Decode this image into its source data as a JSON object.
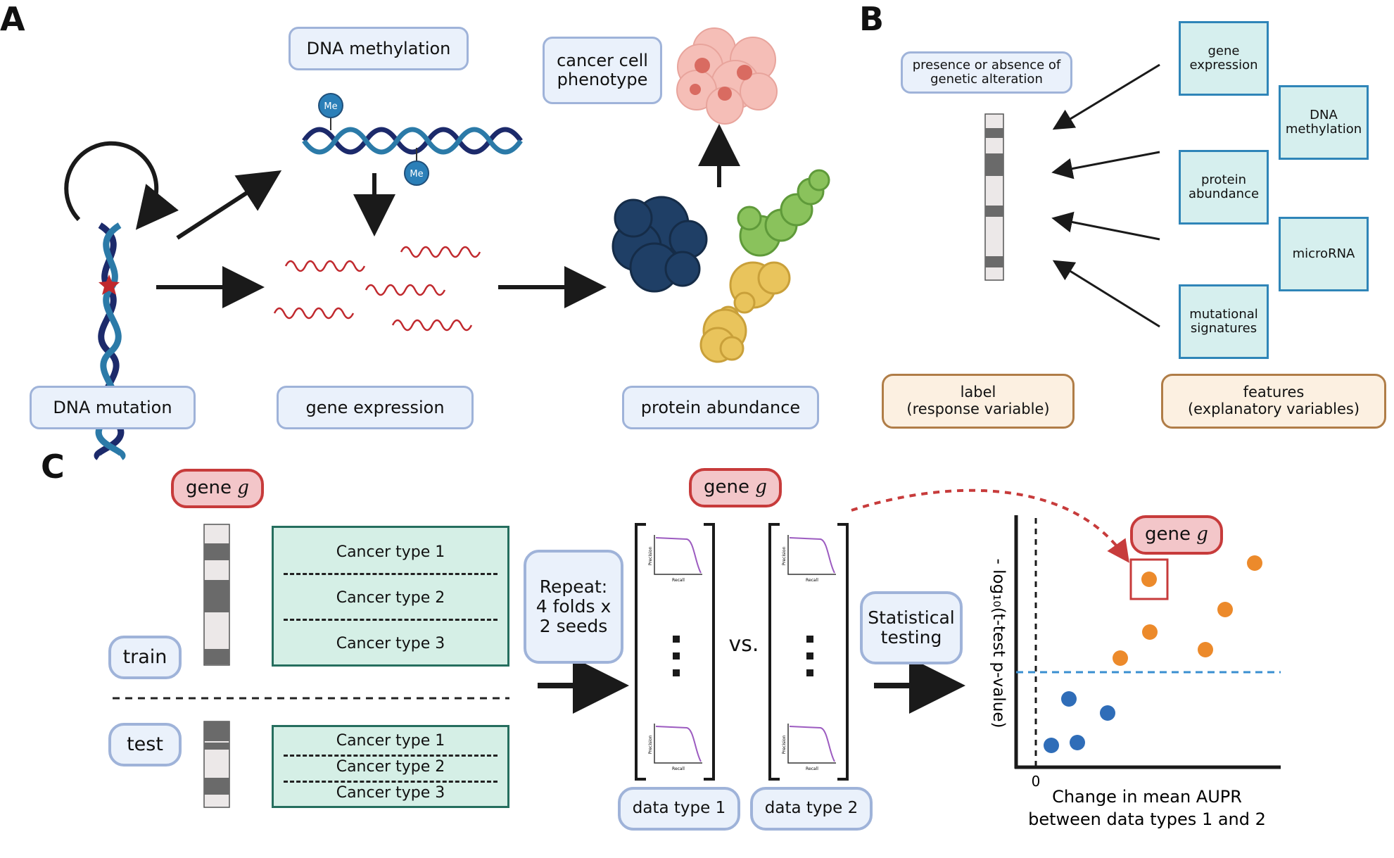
{
  "panels": {
    "a": "A",
    "b": "B",
    "c": "C"
  },
  "panel_a": {
    "dna_methylation": "DNA methylation",
    "me_label": "Me",
    "cancer_cell_phenotype": "cancer cell\nphenotype",
    "dna_mutation": "DNA mutation",
    "gene_expression": "gene expression",
    "protein_abundance": "protein abundance"
  },
  "panel_b": {
    "label_title": "presence or absence of\ngenetic alteration",
    "features": {
      "gene_expression": "gene\nexpression",
      "dna_methylation": "DNA\nmethylation",
      "protein_abundance": "protein\nabundance",
      "microrna": "microRNA",
      "mutational_signatures": "mutational\nsignatures"
    },
    "label_box": "label\n(response variable)",
    "features_box": "features\n(explanatory variables)"
  },
  "panel_c": {
    "gene_word": "gene ",
    "gene_symbol": "g",
    "train": "train",
    "test": "test",
    "cancer_types": [
      "Cancer type 1",
      "Cancer type 2",
      "Cancer type 3"
    ],
    "repeat": "Repeat:\n4 folds x\n2 seeds",
    "vs": "vs.",
    "statistical_testing": "Statistical\ntesting",
    "data_type_1": "data type 1",
    "data_type_2": "data type 2",
    "mini_plot_ylabel": "Precision",
    "mini_plot_xlabel": "Recall",
    "scatter_ylabel": "- log₁₀(t-test p-value)",
    "scatter_zero": "0",
    "scatter_xlabel_line1": "Change in mean AUPR",
    "scatter_xlabel_line2": "between data types 1 and 2"
  },
  "colors": {
    "blue_fill": "#eaf1fb",
    "blue_border": "#9fb3d9",
    "teal_fill": "#d6efee",
    "teal_border": "#2f85b8",
    "split_fill": "#d5efe6",
    "split_border": "#256e5e",
    "orange_fill": "#fcf0e1",
    "orange_border": "#b07d47",
    "red_fill": "#f3c6c9",
    "red_border": "#c73b3b",
    "orange_point": "#ec8a2b",
    "blue_point": "#2f6db8",
    "threshold": "#3a8fd0",
    "mrna": "#c0282d",
    "curve": "#9c5bc0"
  },
  "icons": [
    "dna-helix-icon",
    "methylated-dna-icon",
    "mrna-icon",
    "protein-icon",
    "cancer-cells-icon",
    "feature-vector-icon"
  ]
}
